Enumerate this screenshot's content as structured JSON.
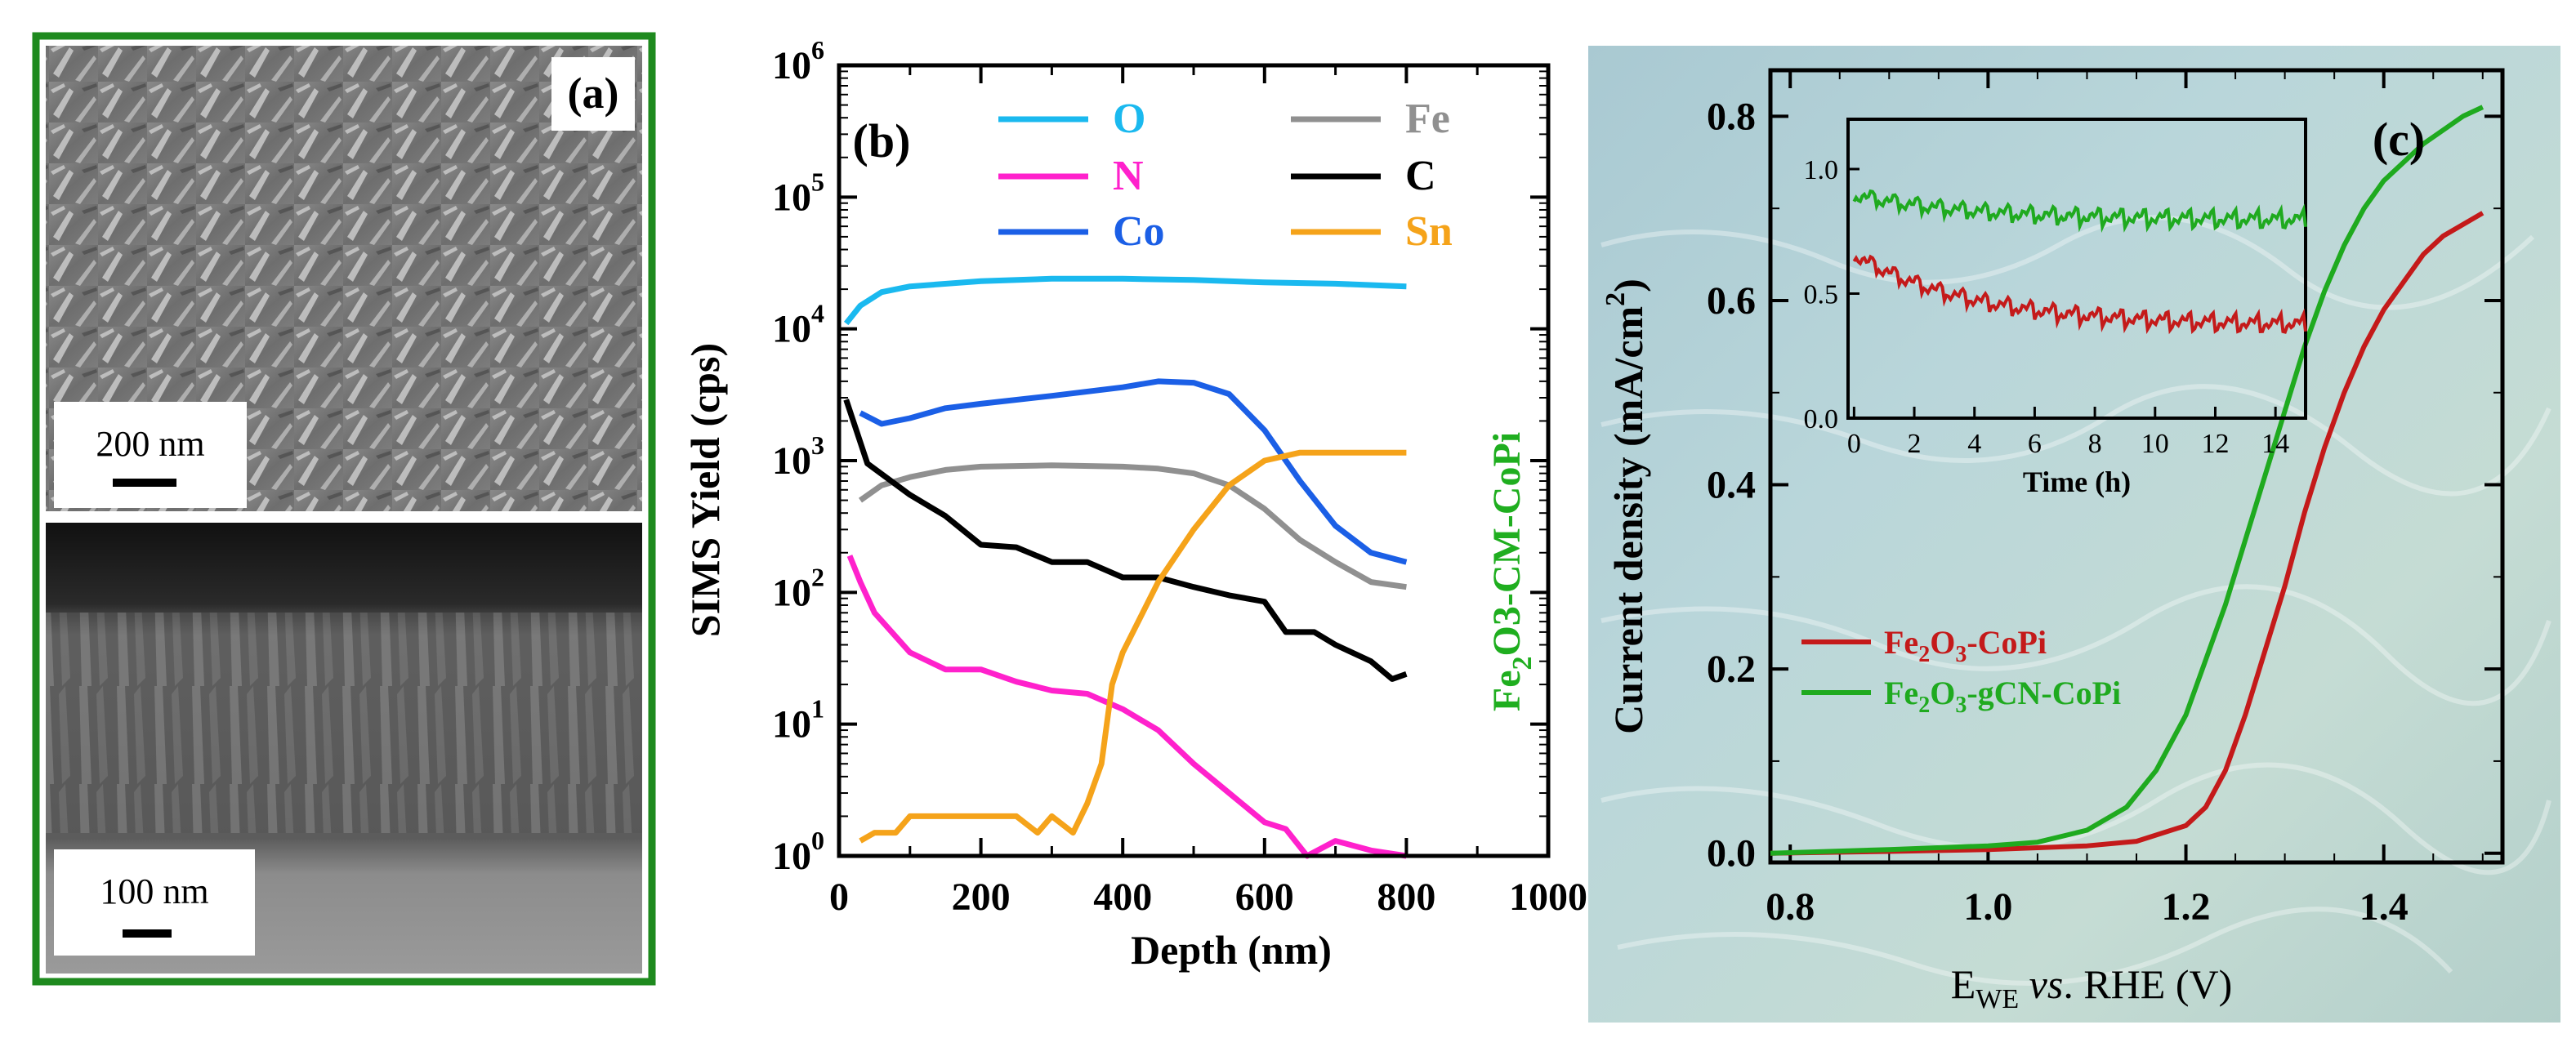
{
  "panels": {
    "a": {
      "label": "(a)",
      "scalebar_top": "200 nm",
      "scalebar_bottom": "100 nm"
    },
    "b": {
      "label": "(b)"
    },
    "c": {
      "label": "(c)"
    }
  },
  "chart_data": [
    {
      "type": "other",
      "panel": "(a)",
      "scalebar_top": "200 nm",
      "scalebar_bottom": "100 nm"
    },
    {
      "type": "line",
      "panel": "(b)",
      "xlabel": "Depth (nm)",
      "ylabel": "SIMS Yield (cps)",
      "xscale": "linear",
      "yscale": "log",
      "xlim": [
        0,
        1000
      ],
      "ylim": [
        1,
        1000000
      ],
      "xticks": [
        "0",
        "200",
        "400",
        "600",
        "800",
        "1000"
      ],
      "yticks": [
        {
          "base": "10",
          "exp": "0"
        },
        {
          "base": "10",
          "exp": "1"
        },
        {
          "base": "10",
          "exp": "2"
        },
        {
          "base": "10",
          "exp": "3"
        },
        {
          "base": "10",
          "exp": "4"
        },
        {
          "base": "10",
          "exp": "5"
        },
        {
          "base": "10",
          "exp": "6"
        }
      ],
      "sample_label": {
        "p1": "Fe",
        "sub": "2",
        "p2": "O3-CM-CoPi"
      },
      "legend_position": "top",
      "series": [
        {
          "name": "O",
          "color": "#1ab9ef",
          "points": [
            [
              10,
              11000
            ],
            [
              30,
              15000
            ],
            [
              60,
              19000
            ],
            [
              100,
              21000
            ],
            [
              200,
              23000
            ],
            [
              300,
              24000
            ],
            [
              400,
              24000
            ],
            [
              500,
              23500
            ],
            [
              600,
              22500
            ],
            [
              700,
              22000
            ],
            [
              800,
              21000
            ]
          ]
        },
        {
          "name": "N",
          "color": "#ff21cc",
          "points": [
            [
              15,
              190
            ],
            [
              30,
              120
            ],
            [
              50,
              70
            ],
            [
              100,
              35
            ],
            [
              150,
              26
            ],
            [
              200,
              26
            ],
            [
              250,
              21
            ],
            [
              300,
              18
            ],
            [
              350,
              17
            ],
            [
              400,
              13
            ],
            [
              450,
              9
            ],
            [
              500,
              5
            ],
            [
              550,
              3
            ],
            [
              600,
              1.8
            ],
            [
              630,
              1.6
            ],
            [
              660,
              1
            ],
            [
              700,
              1.3
            ],
            [
              750,
              1.1
            ],
            [
              800,
              1
            ]
          ]
        },
        {
          "name": "Co",
          "color": "#1b5fe6",
          "points": [
            [
              30,
              2300
            ],
            [
              60,
              1900
            ],
            [
              100,
              2100
            ],
            [
              150,
              2500
            ],
            [
              200,
              2700
            ],
            [
              300,
              3100
            ],
            [
              400,
              3600
            ],
            [
              450,
              4000
            ],
            [
              500,
              3900
            ],
            [
              550,
              3200
            ],
            [
              600,
              1700
            ],
            [
              650,
              700
            ],
            [
              700,
              320
            ],
            [
              750,
              200
            ],
            [
              800,
              170
            ]
          ]
        },
        {
          "name": "Fe",
          "color": "#909090",
          "points": [
            [
              30,
              500
            ],
            [
              60,
              650
            ],
            [
              100,
              750
            ],
            [
              150,
              850
            ],
            [
              200,
              900
            ],
            [
              300,
              920
            ],
            [
              400,
              900
            ],
            [
              450,
              870
            ],
            [
              500,
              800
            ],
            [
              550,
              650
            ],
            [
              600,
              430
            ],
            [
              650,
              250
            ],
            [
              700,
              170
            ],
            [
              750,
              120
            ],
            [
              800,
              110
            ]
          ]
        },
        {
          "name": "C",
          "color": "#000000",
          "points": [
            [
              10,
              2900
            ],
            [
              40,
              950
            ],
            [
              100,
              550
            ],
            [
              150,
              380
            ],
            [
              200,
              230
            ],
            [
              250,
              220
            ],
            [
              300,
              170
            ],
            [
              350,
              170
            ],
            [
              400,
              130
            ],
            [
              450,
              130
            ],
            [
              500,
              110
            ],
            [
              550,
              95
            ],
            [
              600,
              85
            ],
            [
              630,
              50
            ],
            [
              670,
              50
            ],
            [
              700,
              40
            ],
            [
              750,
              30
            ],
            [
              780,
              22
            ],
            [
              800,
              24
            ]
          ]
        },
        {
          "name": "Sn",
          "color": "#f5a31a",
          "points": [
            [
              30,
              1.3
            ],
            [
              50,
              1.5
            ],
            [
              80,
              1.5
            ],
            [
              100,
              2
            ],
            [
              150,
              2
            ],
            [
              200,
              2
            ],
            [
              250,
              2
            ],
            [
              280,
              1.5
            ],
            [
              300,
              2
            ],
            [
              330,
              1.5
            ],
            [
              350,
              2.5
            ],
            [
              370,
              5
            ],
            [
              385,
              20
            ],
            [
              400,
              35
            ],
            [
              450,
              120
            ],
            [
              500,
              300
            ],
            [
              550,
              650
            ],
            [
              600,
              1000
            ],
            [
              650,
              1150
            ],
            [
              700,
              1150
            ],
            [
              800,
              1150
            ]
          ]
        }
      ]
    },
    {
      "type": "line",
      "panel": "(c)",
      "ylabel_main": "Current density (mA/cm",
      "ylabel_sup": "2",
      "ylabel_close": ")",
      "xlabel_e": "E",
      "xlabel_sub": "WE",
      "xlabel_gap": " ",
      "xlabel_vs": "vs",
      "xlabel_rest": ". RHE (V)",
      "xlim": [
        0.78,
        1.52
      ],
      "ylim": [
        -0.01,
        0.85
      ],
      "xticks": [
        "0.8",
        "1.0",
        "1.2",
        "1.4"
      ],
      "yticks": [
        "0.0",
        "0.2",
        "0.4",
        "0.6",
        "0.8"
      ],
      "series": [
        {
          "name": "Fe2O3-CoPi",
          "legend": {
            "p1": "Fe",
            "s1": "2",
            "p2": "O",
            "s2": "3",
            "p3": "-CoPi"
          },
          "color": "#c41a1a",
          "points": [
            [
              0.78,
              0.0
            ],
            [
              0.9,
              0.002
            ],
            [
              1.0,
              0.004
            ],
            [
              1.1,
              0.008
            ],
            [
              1.15,
              0.013
            ],
            [
              1.2,
              0.03
            ],
            [
              1.22,
              0.05
            ],
            [
              1.24,
              0.09
            ],
            [
              1.26,
              0.15
            ],
            [
              1.28,
              0.22
            ],
            [
              1.3,
              0.29
            ],
            [
              1.32,
              0.37
            ],
            [
              1.34,
              0.44
            ],
            [
              1.36,
              0.5
            ],
            [
              1.38,
              0.55
            ],
            [
              1.4,
              0.59
            ],
            [
              1.42,
              0.62
            ],
            [
              1.44,
              0.65
            ],
            [
              1.46,
              0.67
            ],
            [
              1.5,
              0.695
            ]
          ]
        },
        {
          "name": "Fe2O3-gCN-CoPi",
          "legend": {
            "p1": "Fe",
            "s1": "2",
            "p2": "O",
            "s2": "3",
            "p3": "-gCN-CoPi"
          },
          "color": "#1faa1f",
          "points": [
            [
              0.78,
              0.0
            ],
            [
              0.9,
              0.004
            ],
            [
              1.0,
              0.008
            ],
            [
              1.05,
              0.012
            ],
            [
              1.1,
              0.025
            ],
            [
              1.14,
              0.05
            ],
            [
              1.17,
              0.09
            ],
            [
              1.2,
              0.15
            ],
            [
              1.22,
              0.21
            ],
            [
              1.24,
              0.27
            ],
            [
              1.26,
              0.34
            ],
            [
              1.28,
              0.41
            ],
            [
              1.3,
              0.48
            ],
            [
              1.32,
              0.55
            ],
            [
              1.34,
              0.61
            ],
            [
              1.36,
              0.66
            ],
            [
              1.38,
              0.7
            ],
            [
              1.4,
              0.73
            ],
            [
              1.44,
              0.77
            ],
            [
              1.48,
              0.8
            ],
            [
              1.5,
              0.81
            ]
          ]
        }
      ],
      "inset": {
        "xlabel": "Time (h)",
        "xlim": [
          -0.2,
          15
        ],
        "ylim": [
          0,
          1.2
        ],
        "xticks": [
          "0",
          "2",
          "4",
          "6",
          "8",
          "10",
          "12",
          "14"
        ],
        "yticks": [
          "0.0",
          "0.5",
          "1.0"
        ],
        "series": [
          {
            "name": "Fe2O3-gCN-CoPi",
            "color": "#1faa1f",
            "start": 0.9,
            "end": 0.8
          },
          {
            "name": "Fe2O3-CoPi",
            "color": "#c41a1a",
            "start": 0.66,
            "end": 0.38
          }
        ]
      }
    }
  ]
}
